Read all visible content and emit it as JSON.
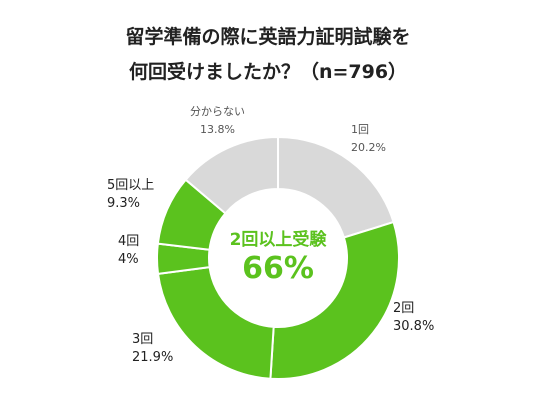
{
  "title_line1": "留学準備の際に英語力証明試験を",
  "title_line2": "何回受けましたか？（n=796）",
  "center": {
    "label": "2回以上受験",
    "value": "66%"
  },
  "colors": {
    "green": "#5bc21e",
    "gray": "#d9d9d9",
    "center_text": "#5bc21e"
  },
  "chart_data": {
    "type": "pie",
    "title": "留学準備の際に英語力証明試験を何回受けましたか？（n=796）",
    "categories": [
      "1回",
      "2回",
      "3回",
      "4回",
      "5回以上",
      "分からない"
    ],
    "values": [
      20.2,
      30.8,
      21.9,
      4,
      9.3,
      13.8
    ],
    "value_labels": [
      "20.2%",
      "30.8%",
      "21.9%",
      "4%",
      "9.3%",
      "13.8%"
    ],
    "colors": [
      "#d9d9d9",
      "#5bc21e",
      "#5bc21e",
      "#5bc21e",
      "#5bc21e",
      "#d9d9d9"
    ],
    "donut": true,
    "start_angle_deg": 0,
    "direction": "clockwise"
  }
}
